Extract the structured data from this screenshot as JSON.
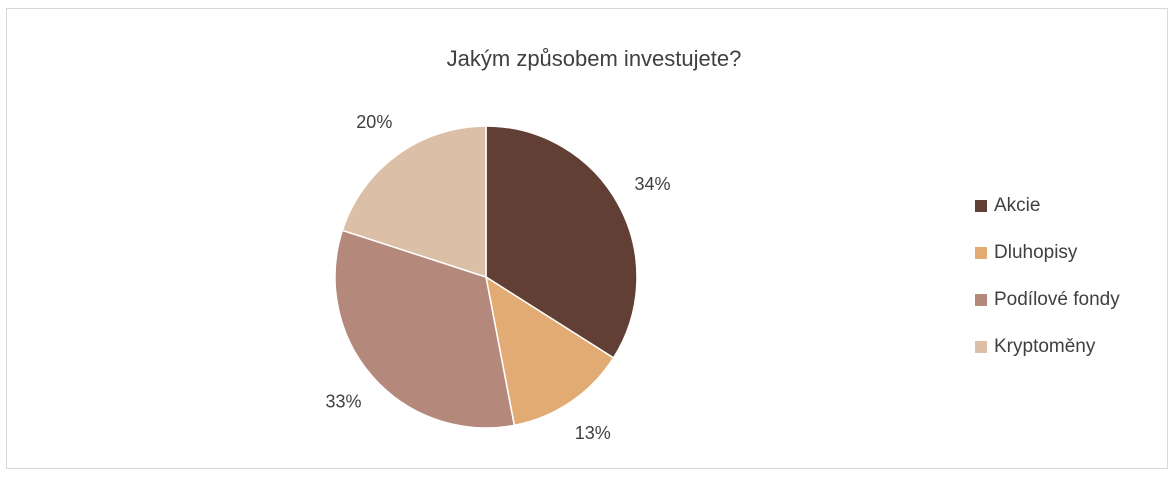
{
  "chart_data": {
    "type": "pie",
    "title": "Jakým způsobem investujete?",
    "categories": [
      "Akcie",
      "Dluhopisy",
      "Podílové fondy",
      "Kryptoměny"
    ],
    "values": [
      34,
      13,
      33,
      20
    ],
    "value_labels": [
      "34%",
      "13%",
      "33%",
      "20%"
    ],
    "colors": [
      "#623f35",
      "#e2ab73",
      "#b4897c",
      "#dbc0a7"
    ],
    "legend": "right"
  }
}
